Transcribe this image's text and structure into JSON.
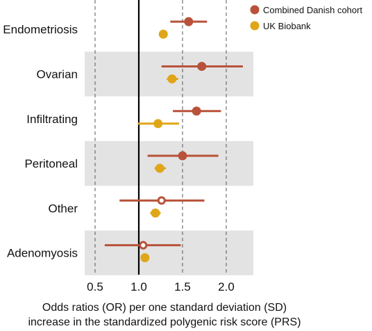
{
  "chart_data": {
    "type": "forest",
    "xlabel": "Odds ratios (OR) per one standard deviation (SD)",
    "xlabel_line2": "increase in the standardized polygenic risk score (PRS)",
    "xlim": [
      0.35,
      2.3
    ],
    "xticks": [
      0.5,
      1.0,
      1.5,
      2.0
    ],
    "xtick_labels": [
      "0.5",
      "1.0",
      "1.5",
      "2.0"
    ],
    "reference_line": 1.0,
    "dashed_gridlines": [
      0.5,
      1.5,
      2.0
    ],
    "categories": [
      "Endometriosis",
      "Ovarian",
      "Infiltrating",
      "Peritoneal",
      "Other",
      "Adenomyosis"
    ],
    "shaded_rows": [
      1,
      3,
      5
    ],
    "series": [
      {
        "name": "Combined Danish cohort",
        "color": "#b8523a",
        "values": [
          {
            "or": 1.57,
            "lo": 1.36,
            "hi": 1.78,
            "open": false
          },
          {
            "or": 1.72,
            "lo": 1.26,
            "hi": 2.19,
            "open": false
          },
          {
            "or": 1.66,
            "lo": 1.39,
            "hi": 1.94,
            "open": false
          },
          {
            "or": 1.5,
            "lo": 1.1,
            "hi": 1.91,
            "open": false
          },
          {
            "or": 1.26,
            "lo": 0.78,
            "hi": 1.75,
            "open": true
          },
          {
            "or": 1.05,
            "lo": 0.61,
            "hi": 1.48,
            "open": true
          }
        ]
      },
      {
        "name": "UK Biobank",
        "color": "#e0a619",
        "values": [
          {
            "or": 1.28,
            "lo": 1.25,
            "hi": 1.31,
            "open": false
          },
          {
            "or": 1.38,
            "lo": 1.32,
            "hi": 1.45,
            "open": false
          },
          {
            "or": 1.22,
            "lo": 0.99,
            "hi": 1.46,
            "open": false
          },
          {
            "or": 1.24,
            "lo": 1.18,
            "hi": 1.31,
            "open": false
          },
          {
            "or": 1.19,
            "lo": 1.13,
            "hi": 1.25,
            "open": false
          },
          {
            "or": 1.07,
            "lo": 1.03,
            "hi": 1.1,
            "open": false
          }
        ]
      }
    ],
    "legend_position": "top-right"
  }
}
